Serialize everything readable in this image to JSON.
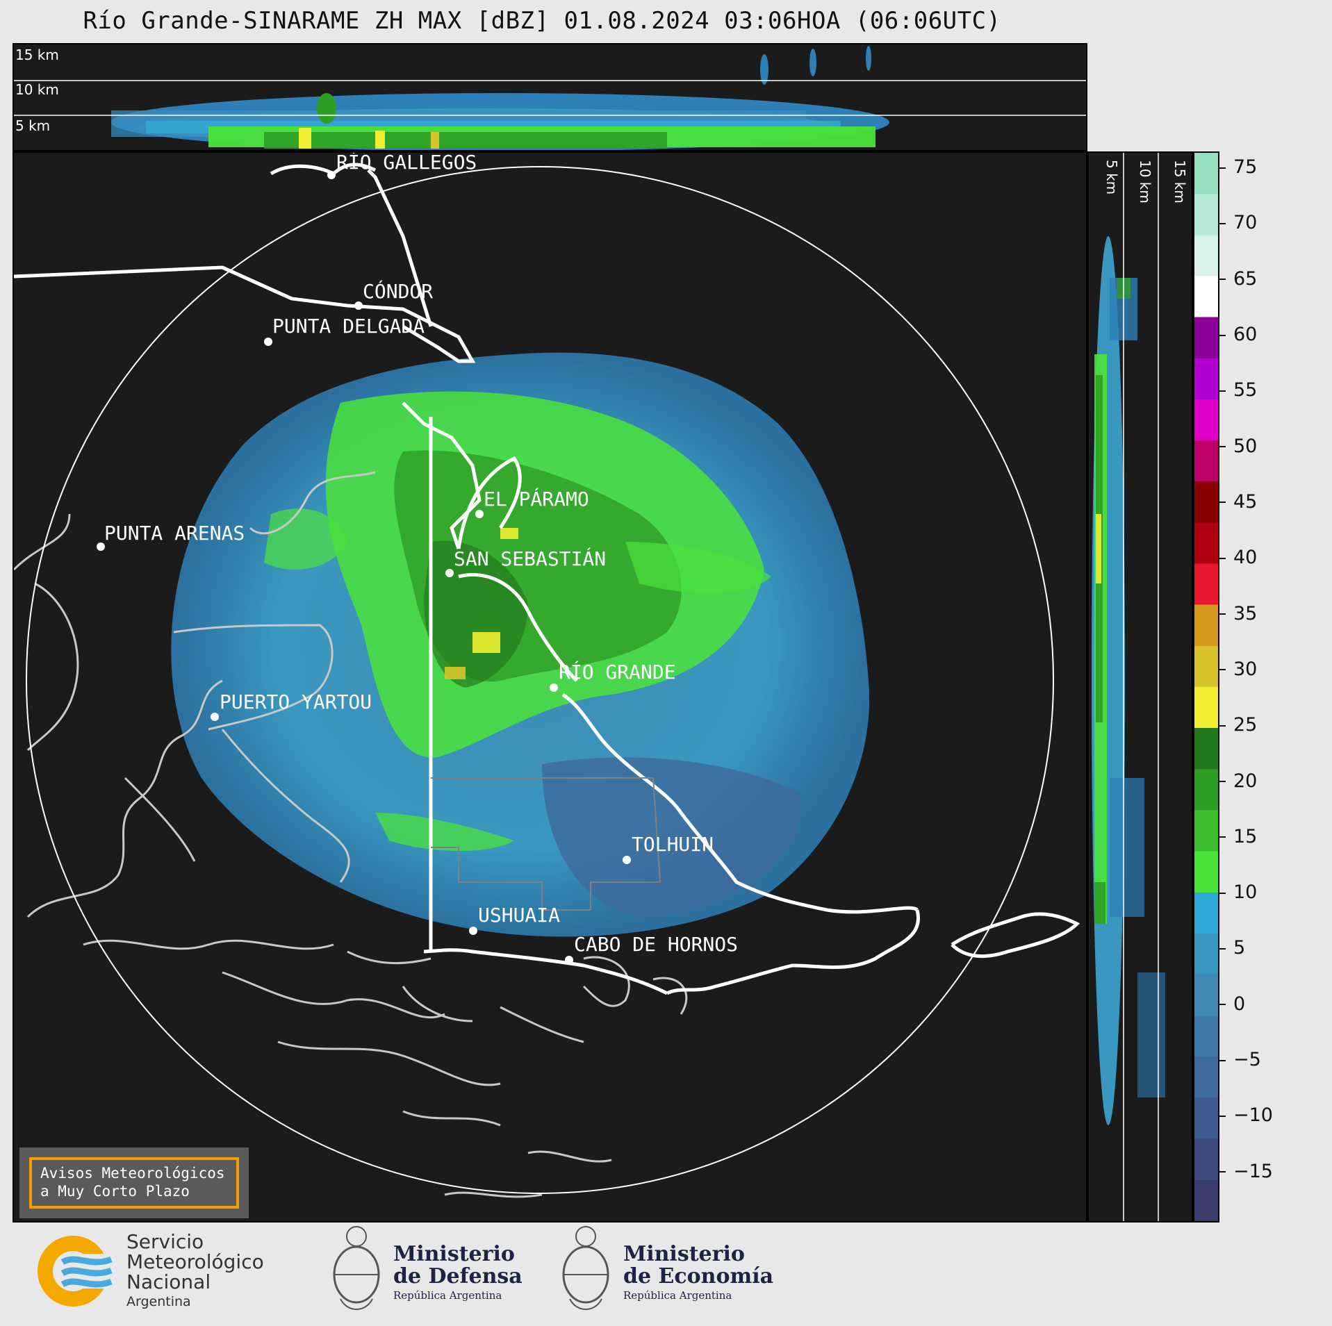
{
  "title": "Río Grande-SINARAME ZH MAX [dBZ] 01.08.2024 03:06HOA (06:06UTC)",
  "altitude_labels": [
    "15 km",
    "10 km",
    "5 km"
  ],
  "side_altitude_labels": [
    "5 km",
    "10 km",
    "15 km"
  ],
  "places": [
    {
      "name": "RÍO GALLEGOS"
    },
    {
      "name": "CÓNDOR"
    },
    {
      "name": "PUNTA DELGADA"
    },
    {
      "name": "EL PÁRAMO"
    },
    {
      "name": "PUNTA ARENAS"
    },
    {
      "name": "SAN SEBASTIÁN"
    },
    {
      "name": "RÍO GRANDE"
    },
    {
      "name": "PUERTO YARTOU"
    },
    {
      "name": "TOLHUIN"
    },
    {
      "name": "USHUAIA"
    },
    {
      "name": "CABO DE HORNOS"
    }
  ],
  "colorbar": {
    "unit": "dBZ",
    "ticks": [
      "75",
      "70",
      "65",
      "60",
      "55",
      "50",
      "45",
      "40",
      "35",
      "30",
      "25",
      "20",
      "15",
      "10",
      "5",
      "0",
      "−5",
      "−10",
      "−15"
    ],
    "colors": [
      "#3a3d6e",
      "#3d4a7e",
      "#3e5a8e",
      "#3f6a9c",
      "#3f7aa8",
      "#3f89b3",
      "#3a98c0",
      "#2ea8d5",
      "#4be33a",
      "#3cbf2c",
      "#2f9e25",
      "#237a1c",
      "#f0ee30",
      "#d8c42a",
      "#d89a1e",
      "#e8182e",
      "#b00010",
      "#8a0000",
      "#c0006a",
      "#e000c8",
      "#b000d0",
      "#8a0098",
      "#ffffff",
      "#d8f2e8",
      "#b6ead6",
      "#96e0c2"
    ]
  },
  "avisos": {
    "line1": "Avisos Meteorológicos",
    "line2": "a Muy Corto Plazo"
  },
  "logos": {
    "smn": {
      "line1": "Servicio",
      "line2": "Meteorológico",
      "line3": "Nacional",
      "line4": "Argentina"
    },
    "defensa": {
      "line1": "Ministerio",
      "line2": "de Defensa",
      "line3": "República Argentina"
    },
    "economia": {
      "line1": "Ministerio",
      "line2": "de Economía",
      "line3": "República Argentina"
    }
  }
}
